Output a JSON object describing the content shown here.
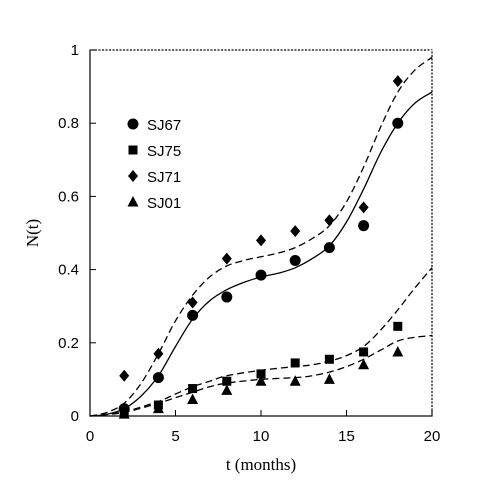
{
  "chart_data": {
    "type": "scatter",
    "title": "",
    "xlabel": "t (months)",
    "ylabel": "N(t)",
    "xlim": [
      0,
      20
    ],
    "ylim": [
      0,
      1
    ],
    "x_ticks": [
      0,
      5,
      10,
      15,
      20
    ],
    "x_tick_labels": [
      "0",
      "5",
      "10",
      "15",
      "20"
    ],
    "y_ticks": [
      0,
      0.2,
      0.4,
      0.6,
      0.8,
      1
    ],
    "y_tick_labels": [
      "0",
      "0.2",
      "0.4",
      "0.6",
      "0.8",
      "1"
    ],
    "grid": false,
    "legend_position": "upper-left",
    "series": [
      {
        "name": "SJ67",
        "marker": "circle",
        "points": [
          {
            "x": 2,
            "y": 0.02
          },
          {
            "x": 4,
            "y": 0.105
          },
          {
            "x": 6,
            "y": 0.275
          },
          {
            "x": 8,
            "y": 0.325
          },
          {
            "x": 10,
            "y": 0.385
          },
          {
            "x": 12,
            "y": 0.425
          },
          {
            "x": 14,
            "y": 0.46
          },
          {
            "x": 16,
            "y": 0.52
          },
          {
            "x": 18,
            "y": 0.8
          }
        ],
        "fit_line_style": "solid",
        "fit_curve": [
          {
            "x": 0,
            "y": 0.0
          },
          {
            "x": 1,
            "y": 0.005
          },
          {
            "x": 2,
            "y": 0.02
          },
          {
            "x": 3,
            "y": 0.055
          },
          {
            "x": 4,
            "y": 0.11
          },
          {
            "x": 5,
            "y": 0.19
          },
          {
            "x": 6,
            "y": 0.265
          },
          {
            "x": 7,
            "y": 0.315
          },
          {
            "x": 8,
            "y": 0.345
          },
          {
            "x": 9,
            "y": 0.365
          },
          {
            "x": 10,
            "y": 0.38
          },
          {
            "x": 11,
            "y": 0.39
          },
          {
            "x": 12,
            "y": 0.405
          },
          {
            "x": 13,
            "y": 0.43
          },
          {
            "x": 14,
            "y": 0.465
          },
          {
            "x": 15,
            "y": 0.53
          },
          {
            "x": 16,
            "y": 0.62
          },
          {
            "x": 17,
            "y": 0.72
          },
          {
            "x": 18,
            "y": 0.8
          },
          {
            "x": 19,
            "y": 0.855
          },
          {
            "x": 20,
            "y": 0.885
          }
        ]
      },
      {
        "name": "SJ75",
        "marker": "square",
        "points": [
          {
            "x": 2,
            "y": 0.01
          },
          {
            "x": 4,
            "y": 0.03
          },
          {
            "x": 6,
            "y": 0.075
          },
          {
            "x": 8,
            "y": 0.095
          },
          {
            "x": 10,
            "y": 0.115
          },
          {
            "x": 12,
            "y": 0.145
          },
          {
            "x": 14,
            "y": 0.155
          },
          {
            "x": 16,
            "y": 0.175
          },
          {
            "x": 18,
            "y": 0.245
          }
        ],
        "fit_line_style": "dashed",
        "fit_curve": [
          {
            "x": 0,
            "y": 0.0
          },
          {
            "x": 2,
            "y": 0.012
          },
          {
            "x": 4,
            "y": 0.04
          },
          {
            "x": 5,
            "y": 0.06
          },
          {
            "x": 6,
            "y": 0.08
          },
          {
            "x": 7,
            "y": 0.095
          },
          {
            "x": 8,
            "y": 0.11
          },
          {
            "x": 10,
            "y": 0.125
          },
          {
            "x": 12,
            "y": 0.135
          },
          {
            "x": 13,
            "y": 0.14
          },
          {
            "x": 14,
            "y": 0.15
          },
          {
            "x": 15,
            "y": 0.165
          },
          {
            "x": 16,
            "y": 0.19
          },
          {
            "x": 17,
            "y": 0.235
          },
          {
            "x": 18,
            "y": 0.29
          },
          {
            "x": 19,
            "y": 0.35
          },
          {
            "x": 20,
            "y": 0.405
          }
        ]
      },
      {
        "name": "SJ71",
        "marker": "diamond",
        "points": [
          {
            "x": 2,
            "y": 0.11
          },
          {
            "x": 4,
            "y": 0.17
          },
          {
            "x": 6,
            "y": 0.31
          },
          {
            "x": 8,
            "y": 0.43
          },
          {
            "x": 10,
            "y": 0.48
          },
          {
            "x": 12,
            "y": 0.505
          },
          {
            "x": 14,
            "y": 0.535
          },
          {
            "x": 16,
            "y": 0.57
          },
          {
            "x": 18,
            "y": 0.915
          }
        ],
        "fit_line_style": "dashed",
        "fit_curve": [
          {
            "x": 0,
            "y": 0.0
          },
          {
            "x": 1,
            "y": 0.01
          },
          {
            "x": 2,
            "y": 0.035
          },
          {
            "x": 3,
            "y": 0.09
          },
          {
            "x": 4,
            "y": 0.17
          },
          {
            "x": 5,
            "y": 0.26
          },
          {
            "x": 6,
            "y": 0.33
          },
          {
            "x": 7,
            "y": 0.38
          },
          {
            "x": 8,
            "y": 0.41
          },
          {
            "x": 9,
            "y": 0.425
          },
          {
            "x": 10,
            "y": 0.435
          },
          {
            "x": 11,
            "y": 0.445
          },
          {
            "x": 12,
            "y": 0.46
          },
          {
            "x": 13,
            "y": 0.485
          },
          {
            "x": 14,
            "y": 0.52
          },
          {
            "x": 15,
            "y": 0.585
          },
          {
            "x": 16,
            "y": 0.68
          },
          {
            "x": 17,
            "y": 0.79
          },
          {
            "x": 18,
            "y": 0.885
          },
          {
            "x": 19,
            "y": 0.945
          },
          {
            "x": 20,
            "y": 0.98
          }
        ]
      },
      {
        "name": "SJ01",
        "marker": "triangle",
        "points": [
          {
            "x": 2,
            "y": 0.005
          },
          {
            "x": 4,
            "y": 0.02
          },
          {
            "x": 6,
            "y": 0.045
          },
          {
            "x": 8,
            "y": 0.07
          },
          {
            "x": 10,
            "y": 0.095
          },
          {
            "x": 12,
            "y": 0.095
          },
          {
            "x": 14,
            "y": 0.1
          },
          {
            "x": 16,
            "y": 0.14
          },
          {
            "x": 18,
            "y": 0.175
          }
        ],
        "fit_line_style": "dashed",
        "fit_curve": [
          {
            "x": 0,
            "y": 0.0
          },
          {
            "x": 2,
            "y": 0.01
          },
          {
            "x": 4,
            "y": 0.035
          },
          {
            "x": 5,
            "y": 0.05
          },
          {
            "x": 6,
            "y": 0.065
          },
          {
            "x": 7,
            "y": 0.08
          },
          {
            "x": 8,
            "y": 0.09
          },
          {
            "x": 10,
            "y": 0.1
          },
          {
            "x": 12,
            "y": 0.105
          },
          {
            "x": 13,
            "y": 0.11
          },
          {
            "x": 14,
            "y": 0.12
          },
          {
            "x": 15,
            "y": 0.135
          },
          {
            "x": 16,
            "y": 0.155
          },
          {
            "x": 17,
            "y": 0.18
          },
          {
            "x": 18,
            "y": 0.205
          },
          {
            "x": 19,
            "y": 0.215
          },
          {
            "x": 20,
            "y": 0.22
          }
        ]
      }
    ]
  }
}
